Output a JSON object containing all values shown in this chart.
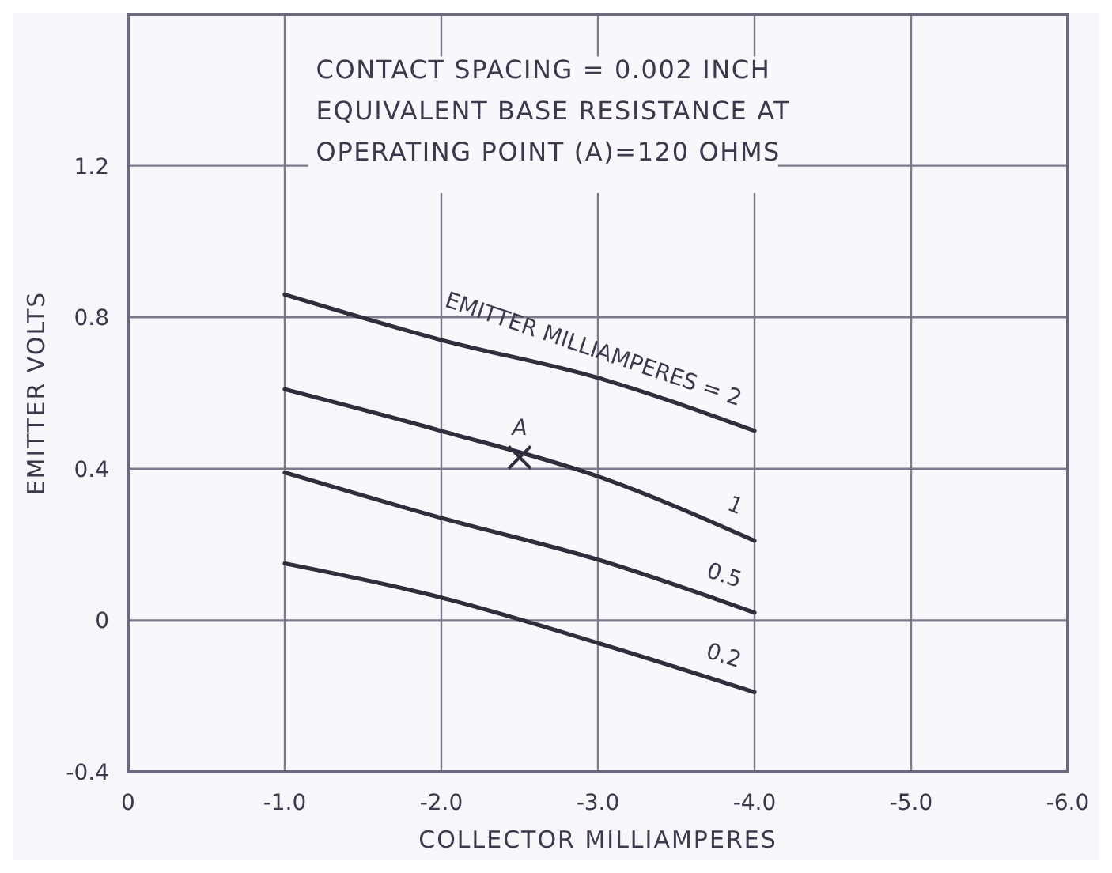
{
  "chart_data": {
    "type": "line",
    "xlabel": "COLLECTOR MILLIAMPERES",
    "ylabel": "EMITTER VOLTS",
    "x": [
      -1,
      -2,
      -3,
      -4
    ],
    "xlim": [
      0,
      -6
    ],
    "xticks": [
      0,
      {
        "value": -1,
        "label": "-1.0"
      },
      {
        "value": -2,
        "label": "-2.0"
      },
      {
        "value": -3,
        "label": "-3.0"
      },
      {
        "value": -4,
        "label": "-4.0"
      },
      {
        "value": -5,
        "label": "-5.0"
      },
      {
        "value": -6,
        "label": "-6.0"
      }
    ],
    "ylim": [
      -0.4,
      1.6
    ],
    "yticks": [
      -0.4,
      0,
      0.4,
      0.8,
      1.2
    ],
    "grid": true,
    "line_style": "solid",
    "series": [
      {
        "name": "EMITTER MILLIAMPERES = 2",
        "color": "#2e2e3c",
        "values": [
          0.86,
          0.74,
          0.64,
          0.5
        ]
      },
      {
        "name": "1",
        "color": "#2e2e3c",
        "values": [
          0.61,
          0.5,
          0.38,
          0.21
        ]
      },
      {
        "name": "0.5",
        "color": "#2e2e3c",
        "values": [
          0.39,
          0.27,
          0.16,
          0.02
        ]
      },
      {
        "name": "0.2",
        "color": "#2e2e3c",
        "values": [
          0.15,
          0.06,
          -0.06,
          -0.19
        ]
      },
      {
        "type": "scatter",
        "marker": "cross",
        "color": "#2e2e3c",
        "x": [
          -2.5
        ],
        "values": [
          0.43
        ]
      }
    ],
    "annotations": [
      "CONTACT SPACING = 0.002 INCH",
      "EQUIVALENT BASE RESISTANCE AT",
      "OPERATING POINT (A)=120 OHMS",
      {
        "text": "A",
        "x": -2.5,
        "y": 0.43
      }
    ]
  }
}
